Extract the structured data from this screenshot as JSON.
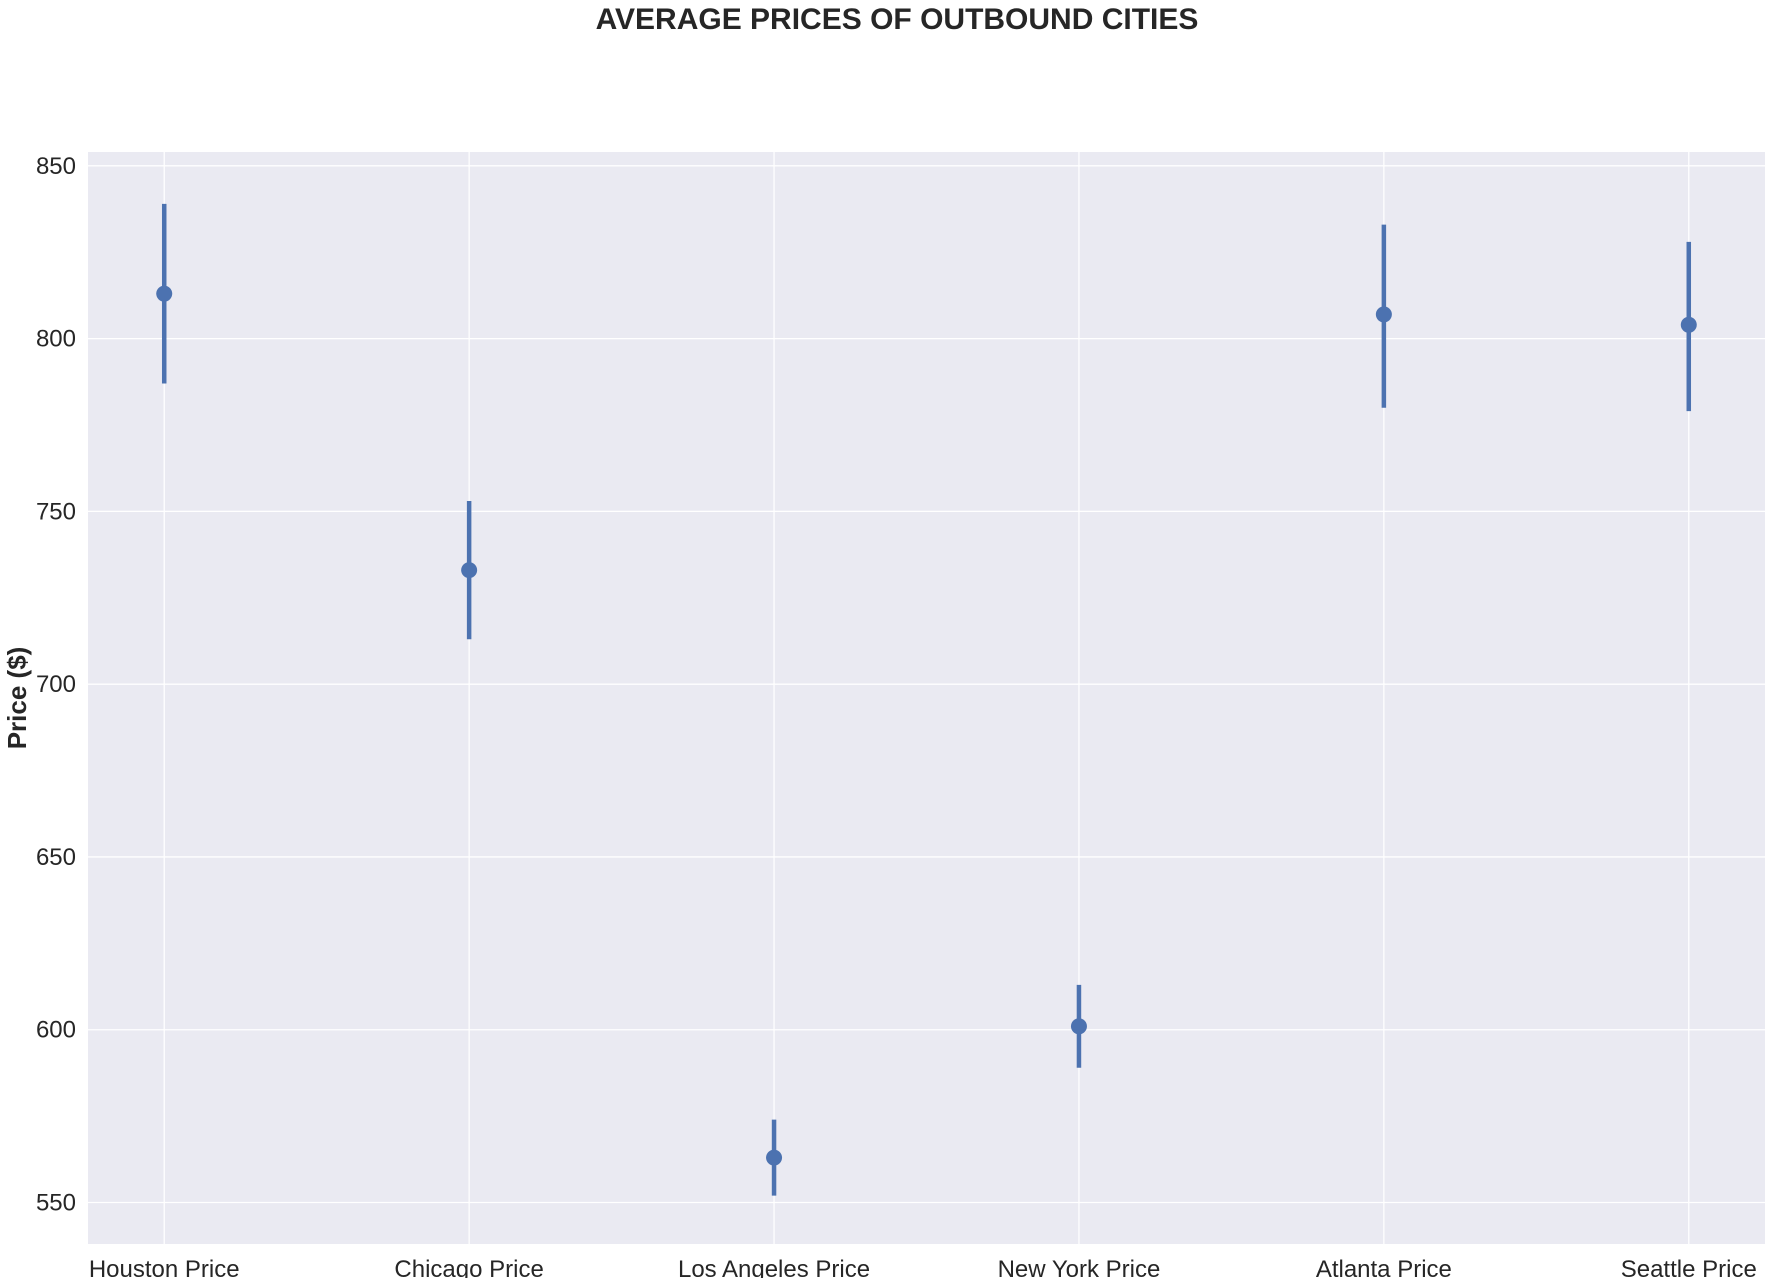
{
  "chart_data": {
    "type": "scatter",
    "title": "AVERAGE PRICES OF OUTBOUND CITIES",
    "xlabel": "",
    "ylabel": "Price ($)",
    "categories": [
      "Houston Price",
      "Chicago Price",
      "Los Angeles Price",
      "New York Price",
      "Atlanta Price",
      "Seattle Price"
    ],
    "values": [
      813,
      733,
      563,
      601,
      807,
      804
    ],
    "error_low": [
      787,
      713,
      552,
      589,
      780,
      779
    ],
    "error_high": [
      839,
      753,
      574,
      613,
      833,
      828
    ],
    "ylim": [
      538,
      854
    ],
    "yticks": [
      550,
      600,
      650,
      700,
      750,
      800,
      850
    ],
    "ytick_labels": [
      "550",
      "600",
      "650",
      "700",
      "750",
      "800",
      "850"
    ],
    "grid": true,
    "color": "#4c72b0",
    "background": "#eaeaf2"
  }
}
